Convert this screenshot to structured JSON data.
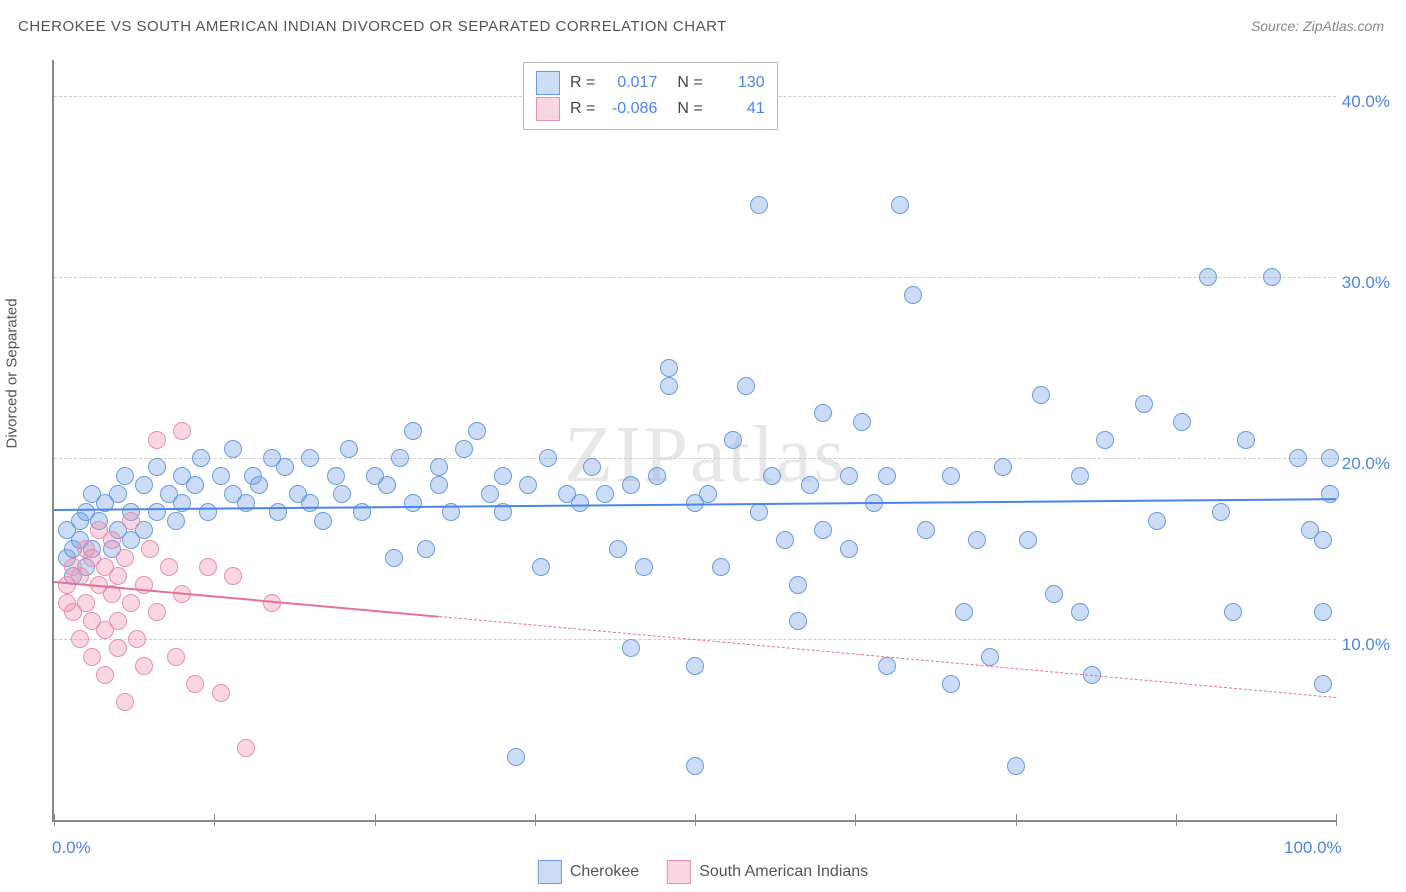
{
  "title": "CHEROKEE VS SOUTH AMERICAN INDIAN DIVORCED OR SEPARATED CORRELATION CHART",
  "source": "Source: ZipAtlas.com",
  "watermark": "ZIPatlas",
  "y_axis_title": "Divorced or Separated",
  "chart": {
    "type": "scatter",
    "xlim": [
      0,
      100
    ],
    "ylim": [
      0,
      42
    ],
    "x_ticks": [
      0,
      12.5,
      25,
      37.5,
      50,
      62.5,
      75,
      87.5,
      100
    ],
    "x_tick_labels": {
      "0": "0.0%",
      "100": "100.0%"
    },
    "y_ticks": [
      10,
      20,
      30,
      40
    ],
    "y_tick_labels": [
      "10.0%",
      "20.0%",
      "30.0%",
      "40.0%"
    ],
    "grid_color": "#cccccc",
    "background_color": "#ffffff",
    "point_radius": 8,
    "series": [
      {
        "name": "Cherokee",
        "fill": "rgba(120,163,230,0.38)",
        "stroke": "#6a9de0",
        "r_value": "0.017",
        "n_value": "130",
        "trend": {
          "y_at_x0": 17.2,
          "y_at_x100": 17.8,
          "color": "#4a86e8",
          "width": 2,
          "dash_from_x": null
        },
        "points": [
          [
            1,
            14.5
          ],
          [
            1,
            16
          ],
          [
            1.5,
            15
          ],
          [
            1.5,
            13.5
          ],
          [
            2,
            16.5
          ],
          [
            2,
            15.5
          ],
          [
            2.5,
            17
          ],
          [
            2.5,
            14
          ],
          [
            3,
            18
          ],
          [
            3,
            15
          ],
          [
            3.5,
            16.5
          ],
          [
            4,
            17.5
          ],
          [
            4.5,
            15
          ],
          [
            5,
            18
          ],
          [
            5,
            16
          ],
          [
            5.5,
            19
          ],
          [
            6,
            17
          ],
          [
            6,
            15.5
          ],
          [
            7,
            18.5
          ],
          [
            7,
            16
          ],
          [
            8,
            19.5
          ],
          [
            8,
            17
          ],
          [
            9,
            18
          ],
          [
            9.5,
            16.5
          ],
          [
            10,
            19
          ],
          [
            10,
            17.5
          ],
          [
            11,
            18.5
          ],
          [
            11.5,
            20
          ],
          [
            12,
            17
          ],
          [
            13,
            19
          ],
          [
            14,
            18
          ],
          [
            14,
            20.5
          ],
          [
            15,
            17.5
          ],
          [
            15.5,
            19
          ],
          [
            16,
            18.5
          ],
          [
            17,
            20
          ],
          [
            17.5,
            17
          ],
          [
            18,
            19.5
          ],
          [
            19,
            18
          ],
          [
            20,
            20
          ],
          [
            20,
            17.5
          ],
          [
            21,
            16.5
          ],
          [
            22,
            19
          ],
          [
            22.5,
            18
          ],
          [
            23,
            20.5
          ],
          [
            24,
            17
          ],
          [
            25,
            19
          ],
          [
            26,
            18.5
          ],
          [
            26.5,
            14.5
          ],
          [
            27,
            20
          ],
          [
            28,
            17.5
          ],
          [
            28,
            21.5
          ],
          [
            29,
            15
          ],
          [
            30,
            18.5
          ],
          [
            30,
            19.5
          ],
          [
            31,
            17
          ],
          [
            32,
            20.5
          ],
          [
            33,
            21.5
          ],
          [
            34,
            18
          ],
          [
            35,
            17
          ],
          [
            35,
            19
          ],
          [
            36,
            3.5
          ],
          [
            37,
            18.5
          ],
          [
            38,
            14
          ],
          [
            38.5,
            20
          ],
          [
            40,
            18
          ],
          [
            41,
            17.5
          ],
          [
            42,
            19.5
          ],
          [
            43,
            18
          ],
          [
            44,
            15
          ],
          [
            45,
            9.5
          ],
          [
            45,
            18.5
          ],
          [
            46,
            14
          ],
          [
            47,
            19
          ],
          [
            48,
            25
          ],
          [
            48,
            24
          ],
          [
            50,
            3
          ],
          [
            50,
            17.5
          ],
          [
            50,
            8.5
          ],
          [
            51,
            18
          ],
          [
            52,
            14
          ],
          [
            53,
            21
          ],
          [
            54,
            24
          ],
          [
            55,
            17
          ],
          [
            55,
            34
          ],
          [
            56,
            19
          ],
          [
            57,
            15.5
          ],
          [
            58,
            13
          ],
          [
            58,
            11
          ],
          [
            59,
            18.5
          ],
          [
            60,
            16
          ],
          [
            60,
            22.5
          ],
          [
            62,
            15
          ],
          [
            62,
            19
          ],
          [
            63,
            22
          ],
          [
            64,
            17.5
          ],
          [
            65,
            19
          ],
          [
            65,
            8.5
          ],
          [
            66,
            34
          ],
          [
            67,
            29
          ],
          [
            68,
            16
          ],
          [
            70,
            19
          ],
          [
            70,
            7.5
          ],
          [
            71,
            11.5
          ],
          [
            72,
            15.5
          ],
          [
            73,
            9
          ],
          [
            74,
            19.5
          ],
          [
            75,
            3
          ],
          [
            76,
            15.5
          ],
          [
            77,
            23.5
          ],
          [
            78,
            12.5
          ],
          [
            80,
            19
          ],
          [
            80,
            11.5
          ],
          [
            81,
            8
          ],
          [
            82,
            21
          ],
          [
            85,
            23
          ],
          [
            86,
            16.5
          ],
          [
            88,
            22
          ],
          [
            90,
            30
          ],
          [
            91,
            17
          ],
          [
            92,
            11.5
          ],
          [
            93,
            21
          ],
          [
            95,
            30
          ],
          [
            97,
            20
          ],
          [
            98,
            16
          ],
          [
            99,
            15.5
          ],
          [
            99,
            7.5
          ],
          [
            99,
            11.5
          ],
          [
            99.5,
            20
          ],
          [
            99.5,
            18
          ]
        ]
      },
      {
        "name": "South American Indians",
        "fill": "rgba(240,150,180,0.38)",
        "stroke": "#e890b0",
        "r_value": "-0.086",
        "n_value": "41",
        "trend": {
          "y_at_x0": 13.2,
          "y_at_x100": 6.8,
          "color": "#e27396",
          "width": 2,
          "dash_from_x": 30
        },
        "points": [
          [
            1,
            13
          ],
          [
            1,
            12
          ],
          [
            1.5,
            14
          ],
          [
            1.5,
            11.5
          ],
          [
            2,
            13.5
          ],
          [
            2,
            10
          ],
          [
            2.5,
            15
          ],
          [
            2.5,
            12
          ],
          [
            3,
            14.5
          ],
          [
            3,
            11
          ],
          [
            3,
            9
          ],
          [
            3.5,
            13
          ],
          [
            3.5,
            16
          ],
          [
            4,
            14
          ],
          [
            4,
            10.5
          ],
          [
            4,
            8
          ],
          [
            4.5,
            12.5
          ],
          [
            4.5,
            15.5
          ],
          [
            5,
            13.5
          ],
          [
            5,
            11
          ],
          [
            5,
            9.5
          ],
          [
            5.5,
            14.5
          ],
          [
            5.5,
            6.5
          ],
          [
            6,
            12
          ],
          [
            6,
            16.5
          ],
          [
            6.5,
            10
          ],
          [
            7,
            13
          ],
          [
            7,
            8.5
          ],
          [
            7.5,
            15
          ],
          [
            8,
            11.5
          ],
          [
            8,
            21
          ],
          [
            9,
            14
          ],
          [
            9.5,
            9
          ],
          [
            10,
            12.5
          ],
          [
            10,
            21.5
          ],
          [
            11,
            7.5
          ],
          [
            12,
            14
          ],
          [
            13,
            7
          ],
          [
            14,
            13.5
          ],
          [
            15,
            4
          ],
          [
            17,
            12
          ]
        ]
      }
    ]
  },
  "stats_legend_labels": {
    "r": "R =",
    "n": "N ="
  },
  "colors": {
    "title": "#555555",
    "axis_label": "#4a86e8",
    "source": "#888888"
  }
}
